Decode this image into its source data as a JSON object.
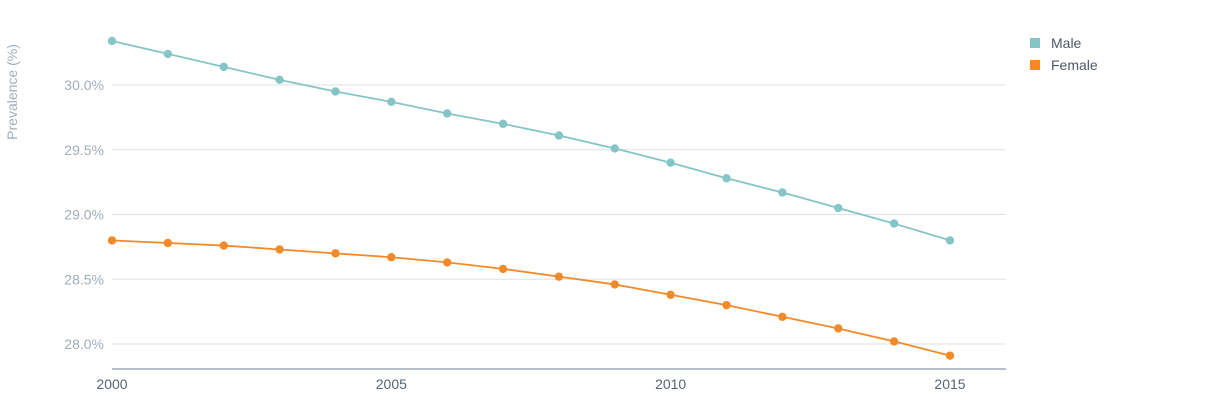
{
  "chart_data": {
    "type": "line",
    "title": "",
    "xlabel": "",
    "ylabel": "Prevalence (%)",
    "x": [
      2000,
      2001,
      2002,
      2003,
      2004,
      2005,
      2006,
      2007,
      2008,
      2009,
      2010,
      2011,
      2012,
      2013,
      2014,
      2015
    ],
    "xlim": [
      2000,
      2016
    ],
    "xticks": [
      2000,
      2005,
      2010,
      2015
    ],
    "xtick_labels": [
      "2000",
      "2005",
      "2010",
      "2015"
    ],
    "ylim": [
      27.8,
      30.5
    ],
    "yticks": [
      28.0,
      28.5,
      29.0,
      29.5,
      30.0
    ],
    "ytick_labels": [
      "28.0%",
      "28.5%",
      "29.0%",
      "29.5%",
      "30.0%"
    ],
    "grid": true,
    "legend_position": "top-right",
    "series": [
      {
        "name": "Male",
        "color": "#86c5c6",
        "values": [
          30.34,
          30.24,
          30.14,
          30.04,
          29.95,
          29.87,
          29.78,
          29.7,
          29.61,
          29.51,
          29.4,
          29.28,
          29.17,
          29.05,
          28.93,
          28.8
        ]
      },
      {
        "name": "Female",
        "color": "#f28a29",
        "values": [
          28.8,
          28.78,
          28.76,
          28.73,
          28.7,
          28.67,
          28.63,
          28.58,
          28.52,
          28.46,
          28.38,
          28.3,
          28.21,
          28.12,
          28.02,
          27.91
        ]
      }
    ]
  }
}
